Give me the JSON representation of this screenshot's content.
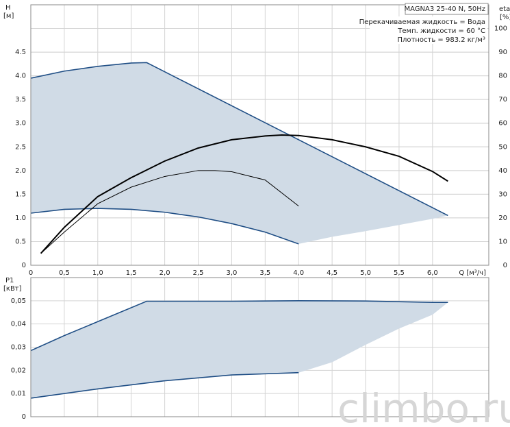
{
  "chart_data": [
    {
      "type": "line",
      "ylabel": "H",
      "yunit": "[м]",
      "y2label": "eta",
      "y2unit": "[%]",
      "xlabel": "Q [м³/ч]",
      "xlim": [
        0,
        6.84
      ],
      "xticks": [
        0,
        {
          "value": 0.5,
          "label": "0,5"
        },
        {
          "value": 1,
          "label": "1,0"
        },
        {
          "value": 1.5,
          "label": "1,5"
        },
        {
          "value": 2,
          "label": "2,0"
        },
        {
          "value": 2.5,
          "label": "2,5"
        },
        {
          "value": 3,
          "label": "3,0"
        },
        {
          "value": 3.5,
          "label": "3,5"
        },
        {
          "value": 4,
          "label": "4,0"
        },
        {
          "value": 4.5,
          "label": "4,5"
        },
        {
          "value": 5,
          "label": "5,0"
        },
        {
          "value": 5.5,
          "label": "5,5"
        },
        {
          "value": 6,
          "label": "6,0"
        }
      ],
      "ylim": [
        0,
        5.5
      ],
      "yticks": [
        0,
        0.5,
        {
          "value": 1,
          "label": "1.0"
        },
        1.5,
        {
          "value": 2,
          "label": "2.0"
        },
        2.5,
        {
          "value": 3,
          "label": "3.0"
        },
        3.5,
        {
          "value": 4,
          "label": "4.0"
        },
        4.5
      ],
      "y2lim": [
        0,
        110
      ],
      "y2ticks": [
        0,
        10,
        20,
        30,
        40,
        50,
        60,
        70,
        80,
        90,
        100
      ],
      "grid": true,
      "fill_color": "#d0dbe6",
      "series": [
        {
          "role": "upper",
          "stroke": true,
          "color": "#1f4e85",
          "x": [
            0,
            0.5,
            1,
            1.5,
            1.73,
            6.23
          ],
          "values": [
            3.95,
            4.1,
            4.2,
            4.27,
            4.28,
            1.05
          ]
        },
        {
          "role": "lower",
          "stroke": true,
          "color": "#1f4e85",
          "x": [
            0,
            0.5,
            1,
            1.5,
            2,
            2.5,
            3,
            3.5,
            4
          ],
          "values": [
            1.1,
            1.18,
            1.2,
            1.18,
            1.12,
            1.02,
            0.88,
            0.7,
            0.45
          ]
        },
        {
          "role": "lower",
          "stroke": false,
          "color": "#1f4e85",
          "x": [
            4,
            4.5,
            5,
            5.5,
            6,
            6.23
          ],
          "values": [
            0.45,
            0.6,
            0.72,
            0.85,
            0.98,
            1.05
          ]
        },
        {
          "axis": "y2",
          "stroke": true,
          "color": "#000000",
          "width": 2,
          "x": [
            0.15,
            0.5,
            1,
            1.5,
            2,
            2.5,
            3,
            3.5,
            3.75,
            4,
            4.5,
            5,
            5.5,
            6,
            6.23
          ],
          "values": [
            5,
            16,
            29,
            37,
            44,
            49.5,
            53,
            54.6,
            55,
            54.8,
            53,
            50,
            46,
            39.6,
            35.5
          ]
        },
        {
          "axis": "y2",
          "stroke": true,
          "color": "#000000",
          "width": 1,
          "x": [
            0.15,
            0.5,
            1,
            1.5,
            2,
            2.5,
            2.75,
            3,
            3.5,
            4
          ],
          "values": [
            5,
            14,
            26,
            33,
            37.5,
            40,
            40,
            39.5,
            36,
            25
          ]
        }
      ]
    },
    {
      "type": "line",
      "ylabel": "P1",
      "yunit": "[кВт]",
      "xlim": [
        0,
        6.84
      ],
      "xticks": [
        0,
        0.5,
        1,
        1.5,
        2,
        2.5,
        3,
        3.5,
        4,
        4.5,
        5,
        5.5,
        6
      ],
      "xtick_labels": false,
      "ylim": [
        0,
        0.06
      ],
      "yticks": [
        0,
        {
          "value": 0.01,
          "label": "0,01"
        },
        {
          "value": 0.02,
          "label": "0,02"
        },
        {
          "value": 0.03,
          "label": "0,03"
        },
        {
          "value": 0.04,
          "label": "0,04"
        },
        {
          "value": 0.05,
          "label": "0,05"
        }
      ],
      "grid": true,
      "fill_color": "#d0dbe6",
      "series": [
        {
          "role": "upper",
          "stroke": true,
          "color": "#1f4e85",
          "x": [
            0,
            0.5,
            1,
            1.73,
            2,
            3,
            4,
            5,
            6,
            6.23
          ],
          "values": [
            0.0285,
            0.035,
            0.041,
            0.0498,
            0.0498,
            0.0498,
            0.05,
            0.0499,
            0.0493,
            0.0493
          ]
        },
        {
          "role": "lower",
          "stroke": true,
          "color": "#1f4e85",
          "x": [
            0,
            1,
            2,
            3,
            4
          ],
          "values": [
            0.008,
            0.012,
            0.0155,
            0.018,
            0.019
          ]
        },
        {
          "role": "lower",
          "stroke": false,
          "color": "#1f4e85",
          "x": [
            4,
            4.5,
            5,
            5.5,
            6,
            6.23
          ],
          "values": [
            0.019,
            0.0235,
            0.031,
            0.038,
            0.044,
            0.0493
          ]
        }
      ]
    }
  ],
  "info": {
    "model": "MAGNA3 25-40 N, 50Hz",
    "lines": [
      "Перекачиваемая жидкость = Вода",
      "Темп. жидкости = 60 °C",
      "Плотность = 983.2 кг/м³"
    ]
  },
  "watermark": "climbo.ru"
}
